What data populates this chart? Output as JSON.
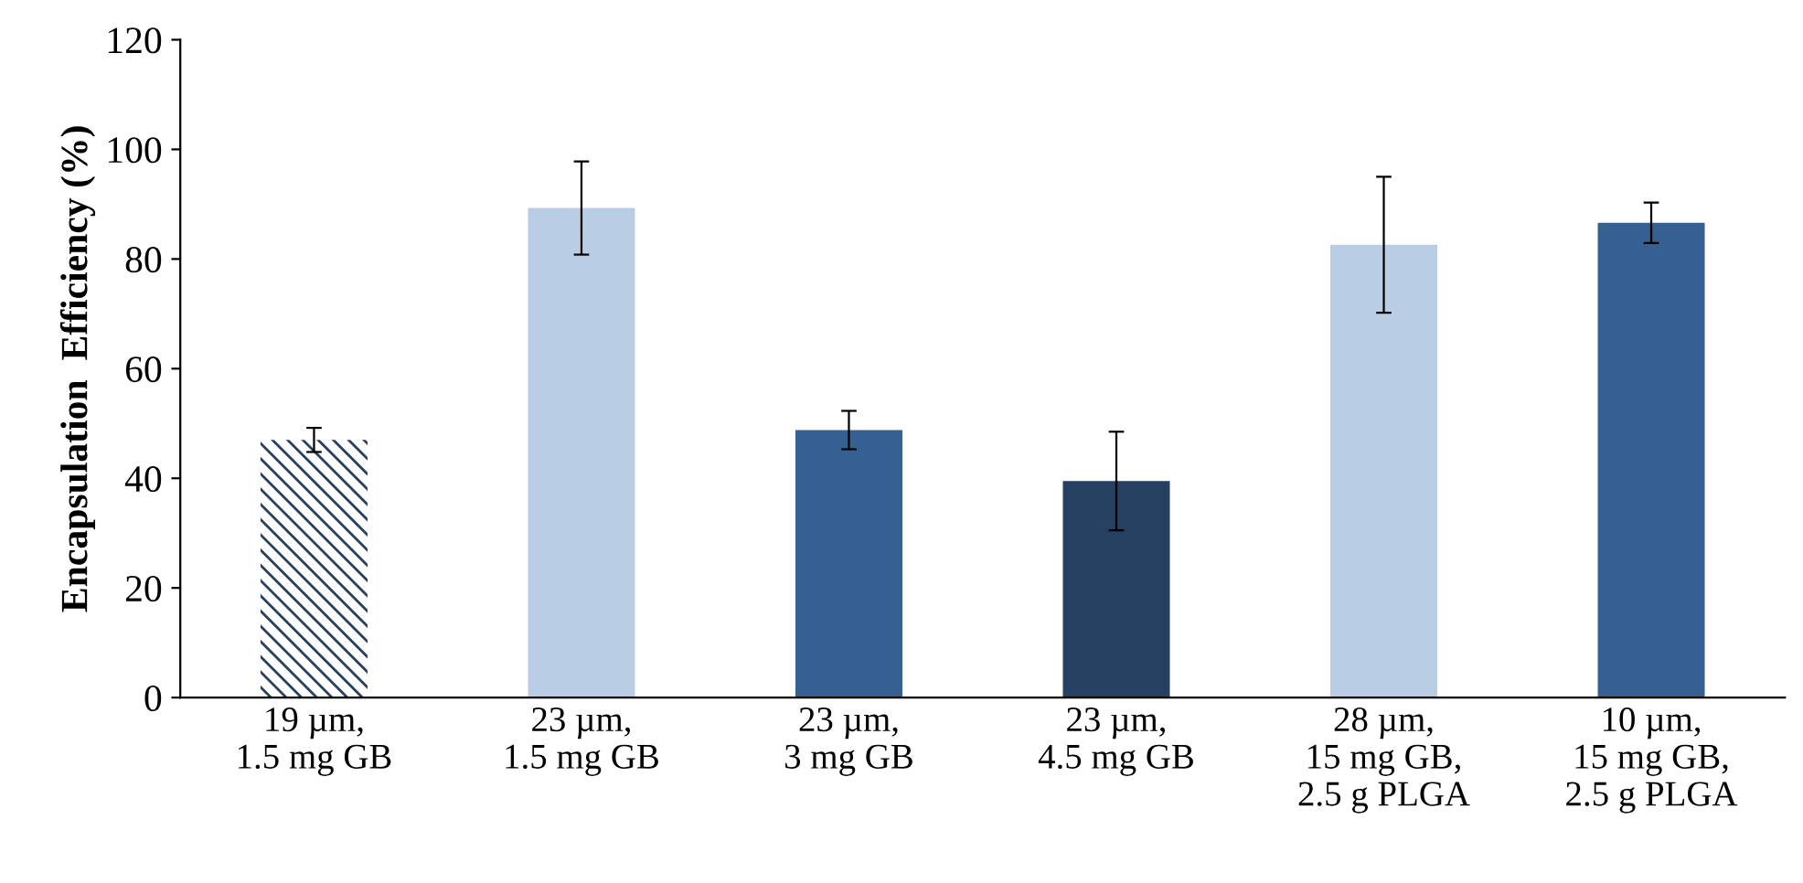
{
  "chart_data": {
    "type": "bar",
    "ylabel": "Encapsulation  Efficiency (%)",
    "categories": [
      "19 µm,\n1.5 mg GB",
      "23 µm,\n1.5 mg GB",
      "23 µm,\n3 mg GB",
      "23 µm,\n4.5 mg GB",
      "28 µm,\n15 mg GB,\n2.5 g PLGA",
      "10 µm,\n15 mg GB,\n2.5 g PLGA"
    ],
    "values": [
      47,
      89.3,
      48.8,
      39.5,
      82.6,
      86.6
    ],
    "errors": [
      2.2,
      8.5,
      3.5,
      9,
      12.4,
      3.7
    ],
    "colors": [
      "#254061",
      "#b9cde5",
      "#376092",
      "#254061",
      "#b9cde5",
      "#376092"
    ],
    "ylim": [
      0,
      120
    ],
    "yticks": [
      0,
      20,
      40,
      60,
      80,
      100,
      120
    ],
    "grid": false
  }
}
